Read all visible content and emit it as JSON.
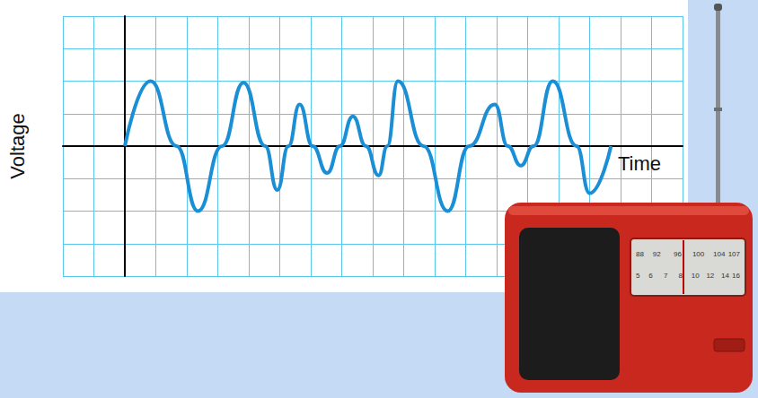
{
  "chart_data": {
    "type": "line",
    "x_label": "Time",
    "y_label": "Voltage",
    "x": [
      0,
      0.83,
      1.67,
      2.36,
      3.14,
      3.83,
      4.53,
      4.92,
      5.28,
      5.64,
      6.06,
      6.53,
      6.94,
      7.36,
      7.78,
      8.19,
      8.47,
      8.81,
      9.64,
      10.42,
      11.11,
      11.94,
      12.36,
      12.78,
      13.19,
      13.81,
      14.58,
      15.0,
      15.69
    ],
    "values": [
      0,
      2.0,
      0,
      -2.0,
      0,
      1.95,
      0,
      -1.35,
      0,
      1.28,
      0,
      -0.83,
      0,
      0.92,
      0,
      -0.9,
      0,
      2.0,
      0,
      -2.0,
      0,
      1.28,
      0,
      -0.6,
      0,
      2.0,
      0,
      -1.45,
      0
    ],
    "color": "#1a8fd6",
    "marker": "none",
    "xlim": [
      -2,
      18
    ],
    "xticks": [
      -2,
      -1,
      0,
      1,
      2,
      3,
      4,
      5,
      6,
      7,
      8,
      9,
      10,
      11,
      12,
      13,
      14,
      15,
      16,
      17,
      18
    ],
    "ylim": [
      -4,
      4
    ],
    "yticks": [
      -4,
      -3,
      -2,
      -1,
      0,
      1,
      2,
      3,
      4
    ],
    "grid": true,
    "tick_labels": false
  },
  "radio": {
    "fm_dial": [
      88,
      92,
      96,
      100,
      104,
      107
    ],
    "am_dial": [
      5,
      6,
      7,
      8,
      10,
      12,
      14,
      16
    ]
  }
}
